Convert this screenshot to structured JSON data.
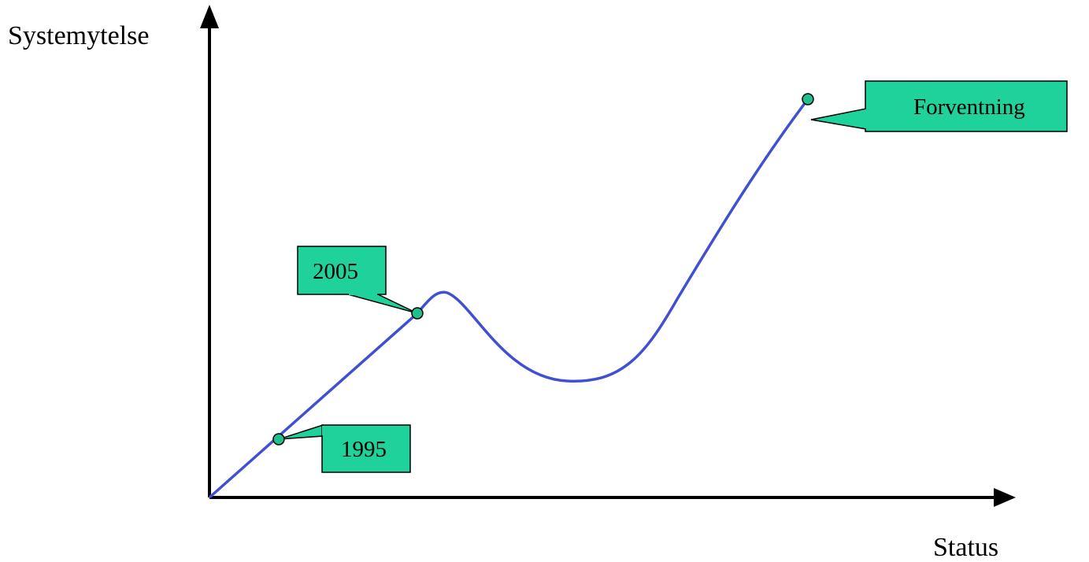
{
  "axes": {
    "y_label": "Systemytelse",
    "x_label": "Status"
  },
  "callouts": {
    "c1995": "1995",
    "c2005": "2005",
    "forventning": "Forventning"
  },
  "colors": {
    "curve": "#4050d0",
    "callout_fill": "#1fd19a",
    "marker_fill": "#1fbf90",
    "axis": "#000000"
  }
}
